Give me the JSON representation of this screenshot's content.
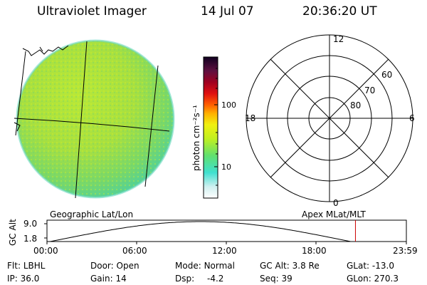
{
  "header": {
    "title": "Ultraviolet Imager",
    "date": "14 Jul 07",
    "time": "20:36:20 UT"
  },
  "colorbar": {
    "label": "photon cm⁻²s⁻¹",
    "ticks": [
      "100",
      "10"
    ]
  },
  "polar_plot": {
    "mlt_labels": [
      "12",
      "18",
      "6",
      "0"
    ],
    "lat_labels": [
      "60",
      "70",
      "80"
    ]
  },
  "panels": {
    "left_caption": "Geographic Lat/Lon",
    "right_caption": "Apex MLat/MLT"
  },
  "altitude_plot": {
    "ylabel": "GC Alt",
    "yticks": [
      "9.0",
      "1.8"
    ],
    "xticks": [
      "00:00",
      "06:00",
      "12:00",
      "18:00",
      "23:59"
    ],
    "current_time_marker": "20:36",
    "curve_color": "#000000",
    "marker_color": "#cc0000"
  },
  "info": {
    "row1": [
      {
        "label": "Flt:",
        "value": "LBHL"
      },
      {
        "label": "Door:",
        "value": "Open"
      },
      {
        "label": "Mode:",
        "value": "Normal"
      },
      {
        "label": "GC Alt:",
        "value": "3.8 Re"
      },
      {
        "label": "GLat:",
        "value": "-13.0"
      }
    ],
    "row2": [
      {
        "label": "IP:",
        "value": "36.0"
      },
      {
        "label": "Gain:",
        "value": "14"
      },
      {
        "label": "Dsp:",
        "value": "-4.2"
      },
      {
        "label": "Seq:",
        "value": "39"
      },
      {
        "label": "GLon:",
        "value": "270.3"
      }
    ]
  }
}
